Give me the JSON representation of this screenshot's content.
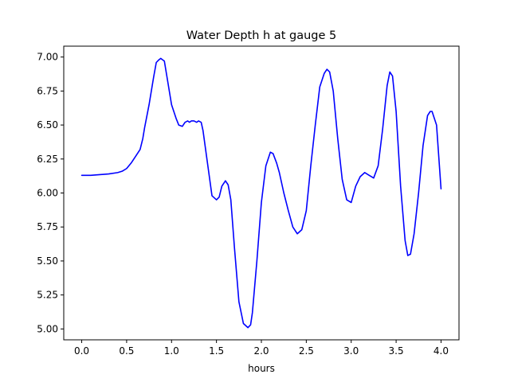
{
  "chart_data": {
    "type": "line",
    "title": "Water Depth h at gauge 5",
    "xlabel": "hours",
    "ylabel": "",
    "xlim": [
      -0.2,
      4.2
    ],
    "ylim": [
      4.92,
      7.08
    ],
    "xticks": [
      0.0,
      0.5,
      1.0,
      1.5,
      2.0,
      2.5,
      3.0,
      3.5,
      4.0
    ],
    "xtick_labels": [
      "0.0",
      "0.5",
      "1.0",
      "1.5",
      "2.0",
      "2.5",
      "3.0",
      "3.5",
      "4.0"
    ],
    "yticks": [
      5.0,
      5.25,
      5.5,
      5.75,
      6.0,
      6.25,
      6.5,
      6.75,
      7.0
    ],
    "ytick_labels": [
      "5.00",
      "5.25",
      "5.50",
      "5.75",
      "6.00",
      "6.25",
      "6.50",
      "6.75",
      "7.00"
    ],
    "grid": false,
    "legend": "none",
    "series": [
      {
        "color": "#0000ff",
        "x": [
          0.0,
          0.1,
          0.2,
          0.3,
          0.4,
          0.45,
          0.5,
          0.55,
          0.6,
          0.65,
          0.68,
          0.7,
          0.75,
          0.8,
          0.83,
          0.86,
          0.88,
          0.9,
          0.92,
          0.95,
          1.0,
          1.05,
          1.08,
          1.12,
          1.15,
          1.18,
          1.2,
          1.22,
          1.25,
          1.28,
          1.3,
          1.33,
          1.35,
          1.4,
          1.45,
          1.5,
          1.53,
          1.56,
          1.6,
          1.63,
          1.66,
          1.7,
          1.75,
          1.8,
          1.85,
          1.88,
          1.9,
          1.95,
          2.0,
          2.05,
          2.1,
          2.13,
          2.17,
          2.2,
          2.25,
          2.3,
          2.35,
          2.4,
          2.45,
          2.5,
          2.55,
          2.6,
          2.65,
          2.7,
          2.73,
          2.76,
          2.8,
          2.85,
          2.9,
          2.95,
          3.0,
          3.05,
          3.1,
          3.15,
          3.2,
          3.25,
          3.3,
          3.35,
          3.4,
          3.43,
          3.46,
          3.5,
          3.55,
          3.6,
          3.63,
          3.66,
          3.7,
          3.75,
          3.8,
          3.85,
          3.88,
          3.9,
          3.95,
          4.0
        ],
        "y": [
          6.13,
          6.13,
          6.135,
          6.14,
          6.15,
          6.16,
          6.18,
          6.22,
          6.27,
          6.32,
          6.4,
          6.48,
          6.65,
          6.85,
          6.96,
          6.98,
          6.99,
          6.98,
          6.97,
          6.85,
          6.65,
          6.55,
          6.5,
          6.49,
          6.52,
          6.53,
          6.52,
          6.53,
          6.53,
          6.52,
          6.53,
          6.52,
          6.46,
          6.22,
          5.98,
          5.95,
          5.97,
          6.05,
          6.09,
          6.06,
          5.95,
          5.6,
          5.2,
          5.04,
          5.01,
          5.03,
          5.12,
          5.5,
          5.93,
          6.2,
          6.3,
          6.29,
          6.22,
          6.15,
          6.0,
          5.87,
          5.75,
          5.7,
          5.73,
          5.87,
          6.2,
          6.5,
          6.78,
          6.88,
          6.91,
          6.89,
          6.75,
          6.4,
          6.1,
          5.95,
          5.93,
          6.05,
          6.12,
          6.15,
          6.13,
          6.11,
          6.2,
          6.47,
          6.79,
          6.89,
          6.86,
          6.6,
          6.05,
          5.65,
          5.54,
          5.55,
          5.7,
          6.0,
          6.35,
          6.57,
          6.6,
          6.6,
          6.5,
          6.03
        ]
      }
    ]
  }
}
